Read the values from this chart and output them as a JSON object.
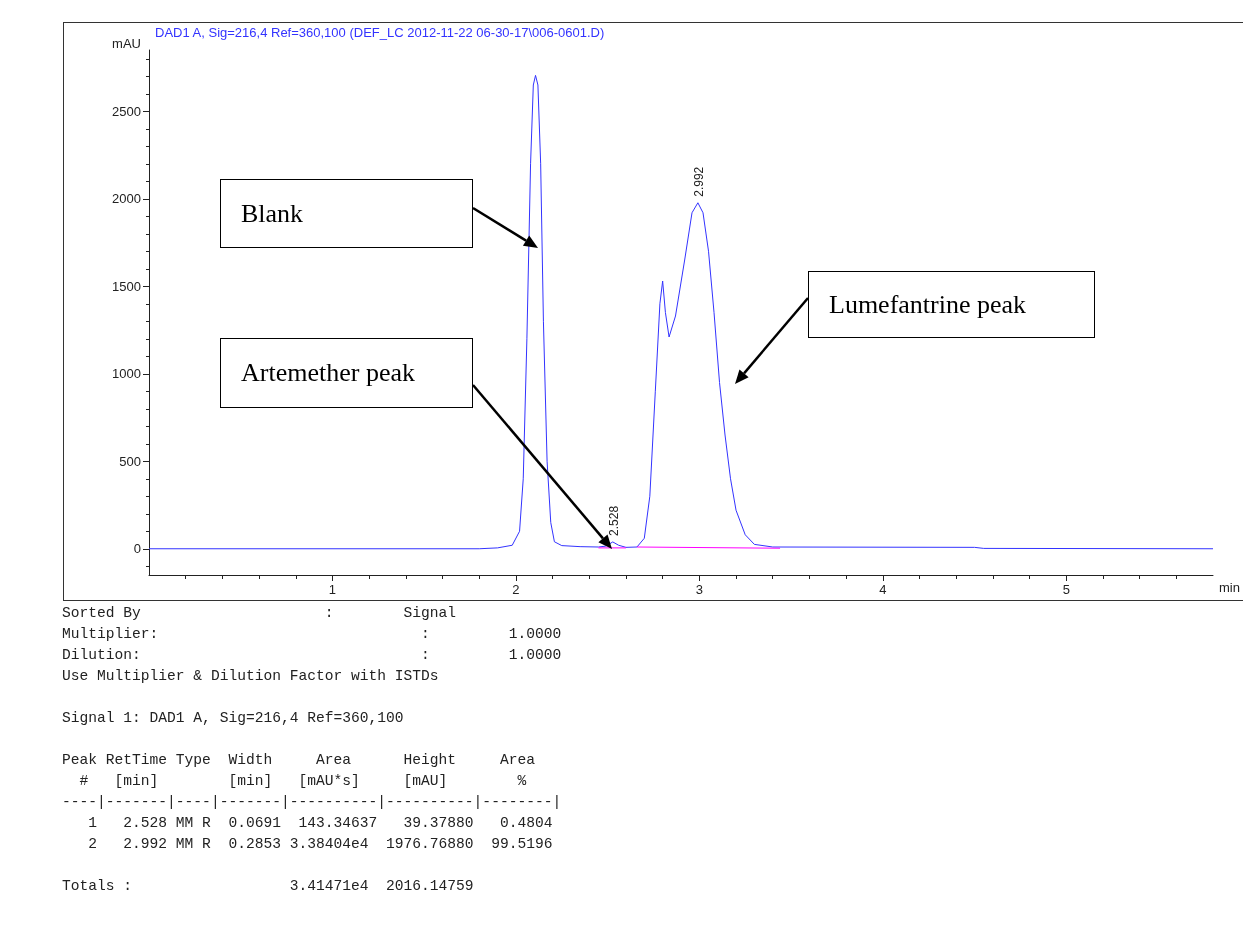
{
  "chart_data": {
    "type": "line",
    "title": "DAD1 A, Sig=216,4 Ref=360,100 (DEF_LC 2012-11-22 06-30-17\\006-0601.D)",
    "xlabel": "min",
    "ylabel": "mAU",
    "series": [
      {
        "color": "#3333ff",
        "x": [
          0,
          1.8,
          1.9,
          1.98,
          2.02,
          2.04,
          2.06,
          2.08,
          2.095,
          2.107,
          2.12,
          2.135,
          2.15,
          2.17,
          2.19,
          2.21,
          2.25,
          2.35,
          2.45,
          2.49,
          2.528,
          2.56,
          2.6,
          2.66,
          2.7,
          2.73,
          2.76,
          2.785,
          2.8,
          2.815,
          2.835,
          2.87,
          2.92,
          2.96,
          2.992,
          3.02,
          3.05,
          3.08,
          3.11,
          3.14,
          3.17,
          3.2,
          3.25,
          3.3,
          3.4,
          4.5,
          4.55,
          5.8
        ],
        "values": [
          0,
          0,
          5,
          20,
          100,
          400,
          1200,
          2200,
          2650,
          2705,
          2650,
          2200,
          1300,
          500,
          150,
          40,
          18,
          12,
          10,
          15,
          39,
          20,
          8,
          10,
          60,
          300,
          900,
          1400,
          1530,
          1350,
          1210,
          1330,
          1650,
          1920,
          1977,
          1920,
          1700,
          1350,
          950,
          650,
          400,
          220,
          80,
          25,
          10,
          8,
          2,
          0
        ]
      },
      {
        "color": "#ff00ff",
        "x": [
          2.45,
          2.6,
          null,
          2.66,
          3.44
        ],
        "values": [
          5,
          5,
          null,
          10,
          3
        ]
      }
    ],
    "xlim": [
      0,
      5.8
    ],
    "xticks": [
      1,
      2,
      3,
      4,
      5
    ],
    "ylim": [
      -150,
      2850
    ],
    "yticks": [
      0,
      500,
      1000,
      1500,
      2000,
      2500
    ],
    "grid": false,
    "marker": "none",
    "line_style": "solid",
    "annotations": [
      {
        "text": "2.528",
        "x": 2.528,
        "y": 39
      },
      {
        "text": "2.992",
        "x": 2.992,
        "y": 1977
      },
      "Blank",
      "Artemether peak",
      "Lumefantrine peak",
      "Sorted By                     :        Signal\nMultiplier:                              :         1.0000\nDilution:                                :         1.0000\nUse Multiplier & Dilution Factor with ISTDs",
      "Signal 1: DAD1 A, Sig=216,4 Ref=360,100",
      "Peak RetTime Type  Width     Area      Height     Area\n  #   [min]        [min]   [mAU*s]     [mAU]        %\n----|-------|----|-------|----------|----------|--------|\n   1   2.528 MM R  0.0691  143.34637   39.37880   0.4804\n   2   2.992 MM R  0.2853 3.38404e4  1976.76880  99.5196",
      "Totals :                  3.41471e4  2016.14759"
    ]
  }
}
